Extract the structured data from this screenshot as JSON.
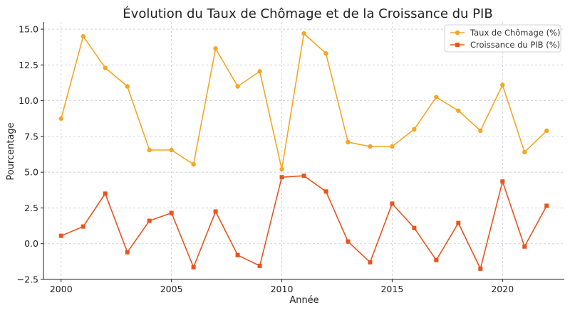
{
  "chart_data": {
    "type": "line",
    "title": "Évolution du Taux de Chômage et de la Croissance du PIB",
    "xlabel": "Année",
    "ylabel": "Pourcentage",
    "xlim": [
      1999.2,
      2022.8
    ],
    "ylim": [
      -2.5,
      15.5
    ],
    "xticks": [
      2000,
      2005,
      2010,
      2015,
      2020
    ],
    "yticks": [
      -2.5,
      0.0,
      2.5,
      5.0,
      7.5,
      10.0,
      12.5,
      15.0
    ],
    "ytick_labels": [
      "−2.5",
      "0.0",
      "2.5",
      "5.0",
      "7.5",
      "10.0",
      "12.5",
      "15.0"
    ],
    "grid": true,
    "legend_position": "top-right",
    "x": [
      2000,
      2001,
      2002,
      2003,
      2004,
      2005,
      2006,
      2007,
      2008,
      2009,
      2010,
      2011,
      2012,
      2013,
      2014,
      2015,
      2016,
      2017,
      2018,
      2019,
      2020,
      2021,
      2022
    ],
    "series": [
      {
        "name": "Taux de Chômage (%)",
        "color": "#f5a623",
        "marker": "circle",
        "values": [
          8.75,
          14.5,
          12.3,
          11.0,
          6.55,
          6.55,
          5.55,
          13.65,
          11.0,
          12.05,
          5.2,
          14.7,
          13.3,
          7.1,
          6.8,
          6.8,
          8.0,
          10.25,
          9.3,
          7.9,
          11.1,
          6.4,
          7.9
        ]
      },
      {
        "name": "Croissance du PIB (%)",
        "color": "#e8541c",
        "marker": "square",
        "values": [
          0.55,
          1.2,
          3.5,
          -0.6,
          1.6,
          2.15,
          -1.65,
          2.25,
          -0.8,
          -1.55,
          4.65,
          4.75,
          3.65,
          0.15,
          -1.3,
          2.8,
          1.1,
          -1.15,
          1.45,
          -1.75,
          4.35,
          -0.2,
          2.65
        ]
      }
    ]
  }
}
